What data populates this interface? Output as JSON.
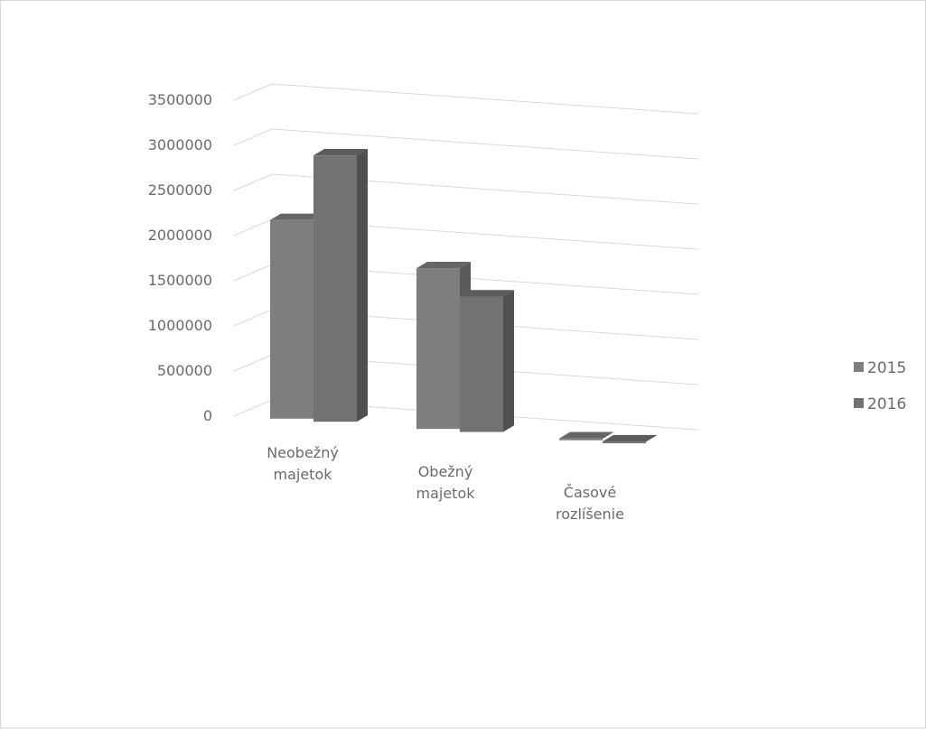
{
  "chart_data": {
    "type": "bar",
    "title": "",
    "xlabel": "",
    "ylabel": "",
    "three_d": true,
    "grid": true,
    "legend_position": "right",
    "ylim": [
      0,
      3500000
    ],
    "yticks": [
      "3500000",
      "3000000",
      "2500000",
      "2000000",
      "1500000",
      "1000000",
      "500000",
      "0"
    ],
    "categories": [
      [
        "Neobežný",
        "majetok"
      ],
      [
        "Obežný",
        "majetok"
      ],
      [
        "Časové",
        "rozlíšenie"
      ]
    ],
    "series": [
      {
        "name": "2015",
        "values": [
          2200000,
          1780000,
          5000
        ],
        "color": "#7e7e7e"
      },
      {
        "name": "2016",
        "values": [
          2950000,
          1500000,
          5000
        ],
        "color": "#727272"
      }
    ]
  }
}
